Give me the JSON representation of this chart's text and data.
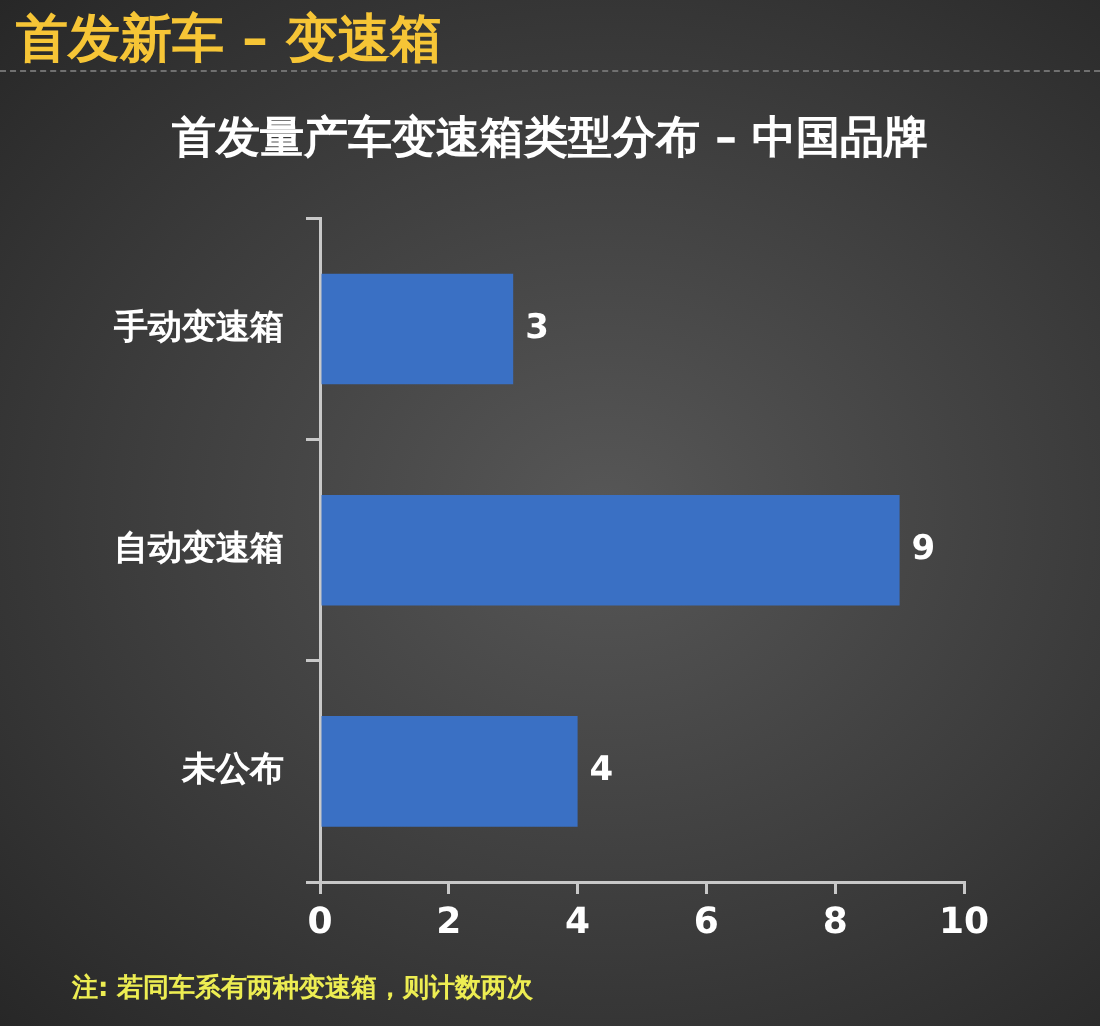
{
  "chart_data": {
    "type": "bar",
    "title": "首发新车 – 变速箱",
    "subtitle": "首发量产车变速箱类型分布 – 中国品牌",
    "orientation": "horizontal",
    "categories": [
      "手动变速箱",
      "自动变速箱",
      "未公布"
    ],
    "values": [
      3,
      9,
      4
    ],
    "color": "#3a70c4",
    "xlim": [
      0,
      10
    ],
    "xticks": [
      0,
      2,
      4,
      6,
      8,
      10
    ],
    "data_labels": true,
    "annotations": [
      "注: 若同车系有两种变速箱，则计数两次"
    ]
  }
}
